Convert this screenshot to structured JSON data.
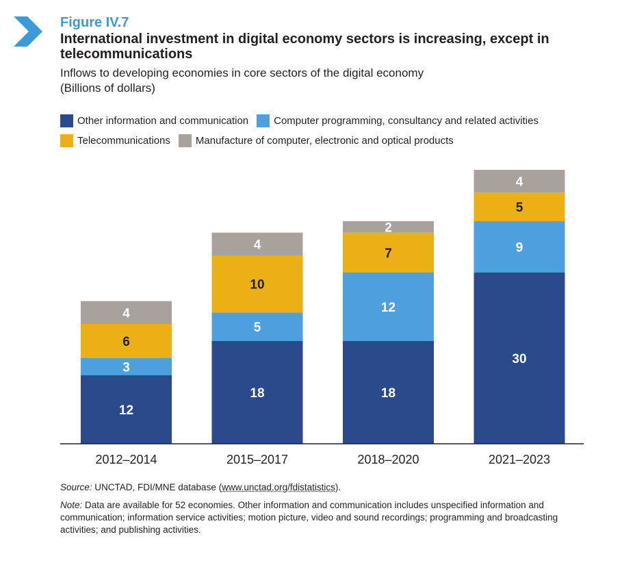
{
  "header": {
    "figure_label": "Figure IV.7",
    "title": "International investment in digital economy sectors is increasing, except in telecommunications",
    "subtitle_line1": "Inflows to developing economies in core sectors of the digital economy",
    "subtitle_line2": "(Billions of dollars)"
  },
  "colors": {
    "accent": "#3b9ad9",
    "other_info": "#2a4a8b",
    "computer_prog": "#4d9fdd",
    "telecom": "#ebb016",
    "manufacture": "#a9a19c",
    "axis": "#231f20"
  },
  "legend": [
    {
      "label": "Other information and communication",
      "color": "#2a4a8b"
    },
    {
      "label": "Computer programming, consultancy and related activities",
      "color": "#4d9fdd"
    },
    {
      "label": "Telecommunications",
      "color": "#ebb016"
    },
    {
      "label": "Manufacture of computer, electronic and optical products",
      "color": "#a9a19c"
    }
  ],
  "chart_data": {
    "type": "bar",
    "stacked": true,
    "categories": [
      "2012–2014",
      "2015–2017",
      "2018–2020",
      "2021–2023"
    ],
    "series": [
      {
        "name": "Other information and communication",
        "values": [
          12,
          18,
          18,
          30
        ],
        "color": "#2a4a8b"
      },
      {
        "name": "Computer programming, consultancy and related activities",
        "values": [
          3,
          5,
          12,
          9
        ],
        "color": "#4d9fdd"
      },
      {
        "name": "Telecommunications",
        "values": [
          6,
          10,
          7,
          5
        ],
        "color": "#ebb016"
      },
      {
        "name": "Manufacture of computer, electronic and optical products",
        "values": [
          4,
          4,
          2,
          4
        ],
        "color": "#a9a19c"
      }
    ],
    "title": "",
    "xlabel": "",
    "ylabel": "",
    "ylim": [
      0,
      48
    ],
    "grid": false,
    "legend_position": "top",
    "data_labels": true
  },
  "footer": {
    "source_prefix": "Source:",
    "source_text": " UNCTAD, FDI/MNE database (",
    "source_link": "www.unctad.org/fdistatistics",
    "source_suffix": ").",
    "note_prefix": "Note:",
    "note_text": " Data are available for 52 economies. Other information and communication includes unspecified information and communication; information service activities; motion picture, video and sound recordings; programming and broadcasting activities; and publishing activities."
  }
}
